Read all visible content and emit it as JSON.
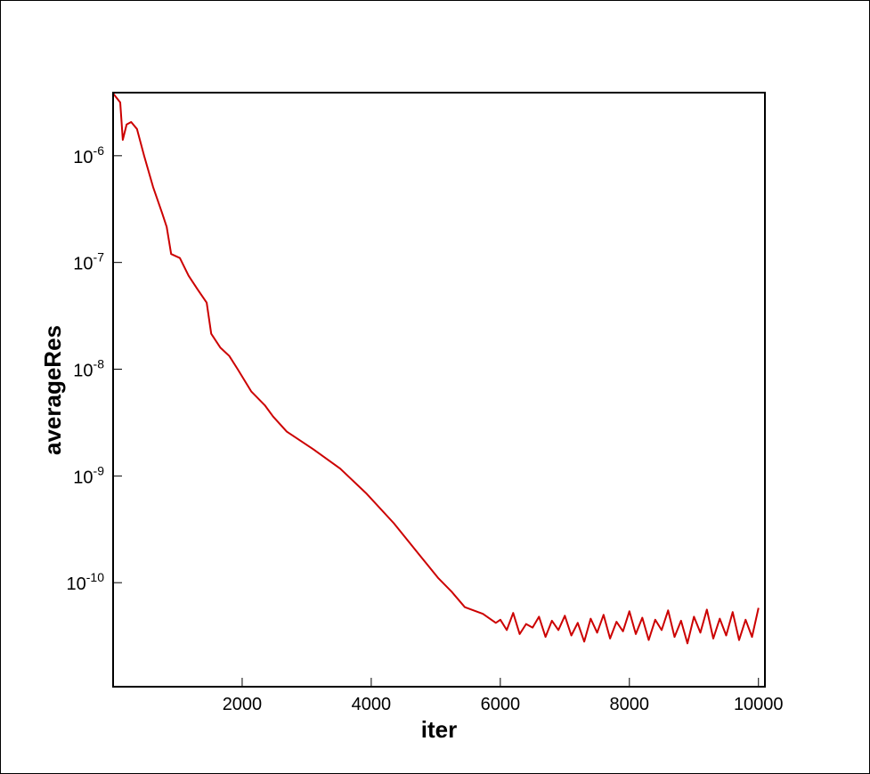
{
  "chart_data": {
    "type": "line",
    "xlabel": "iter",
    "ylabel": "averageRes",
    "log_y": true,
    "color": "#cc0000",
    "xlim": [
      0,
      10100
    ],
    "xticks": [
      2000,
      4000,
      6000,
      8000,
      10000
    ],
    "ylim": [
      1.06e-11,
      3.9e-06
    ],
    "yticks": [
      {
        "value": 1e-06,
        "label": "10-6"
      },
      {
        "value": 1e-07,
        "label": "10-7"
      },
      {
        "value": 1e-08,
        "label": "10-8"
      },
      {
        "value": 1e-09,
        "label": "10-9"
      },
      {
        "value": 1e-10,
        "label": "10-10"
      }
    ],
    "x": [
      0,
      110,
      150,
      210,
      280,
      370,
      480,
      620,
      760,
      830,
      900,
      1035,
      1170,
      1310,
      1450,
      1520,
      1660,
      1800,
      1930,
      2140,
      2350,
      2480,
      2690,
      3100,
      3520,
      3930,
      4350,
      4760,
      5040,
      5240,
      5450,
      5730,
      5930,
      6000,
      6100,
      6200,
      6300,
      6400,
      6500,
      6600,
      6700,
      6800,
      6900,
      7000,
      7100,
      7200,
      7300,
      7400,
      7500,
      7600,
      7700,
      7800,
      7900,
      8000,
      8100,
      8200,
      8300,
      8400,
      8500,
      8600,
      8700,
      8800,
      8900,
      9000,
      9100,
      9200,
      9300,
      9400,
      9500,
      9600,
      9700,
      9800,
      9900,
      10000
    ],
    "values": [
      3.83e-06,
      3.16e-06,
      1.41e-06,
      1.96e-06,
      2.07e-06,
      1.78e-06,
      1e-06,
      5.1e-07,
      2.9e-07,
      2.15e-07,
      1.2e-07,
      1.1e-07,
      7.5e-08,
      5.6e-08,
      4.2e-08,
      2.15e-08,
      1.6e-08,
      1.33e-08,
      1e-08,
      6.2e-09,
      4.6e-09,
      3.6e-09,
      2.6e-09,
      1.78e-09,
      1.17e-09,
      6.8e-10,
      3.6e-10,
      1.78e-10,
      1.1e-10,
      8.3e-11,
      5.9e-11,
      5.1e-11,
      4.2e-11,
      4.5e-11,
      3.6e-11,
      5.2e-11,
      3.3e-11,
      4.1e-11,
      3.8e-11,
      4.8e-11,
      3.1e-11,
      4.4e-11,
      3.6e-11,
      4.9e-11,
      3.2e-11,
      4.2e-11,
      2.8e-11,
      4.6e-11,
      3.4e-11,
      5e-11,
      3e-11,
      4.3e-11,
      3.5e-11,
      5.4e-11,
      3.3e-11,
      4.7e-11,
      2.9e-11,
      4.5e-11,
      3.6e-11,
      5.5e-11,
      3.1e-11,
      4.4e-11,
      2.7e-11,
      4.8e-11,
      3.4e-11,
      5.6e-11,
      3e-11,
      4.6e-11,
      3.2e-11,
      5.3e-11,
      2.9e-11,
      4.5e-11,
      3.1e-11,
      5.8e-11
    ]
  }
}
